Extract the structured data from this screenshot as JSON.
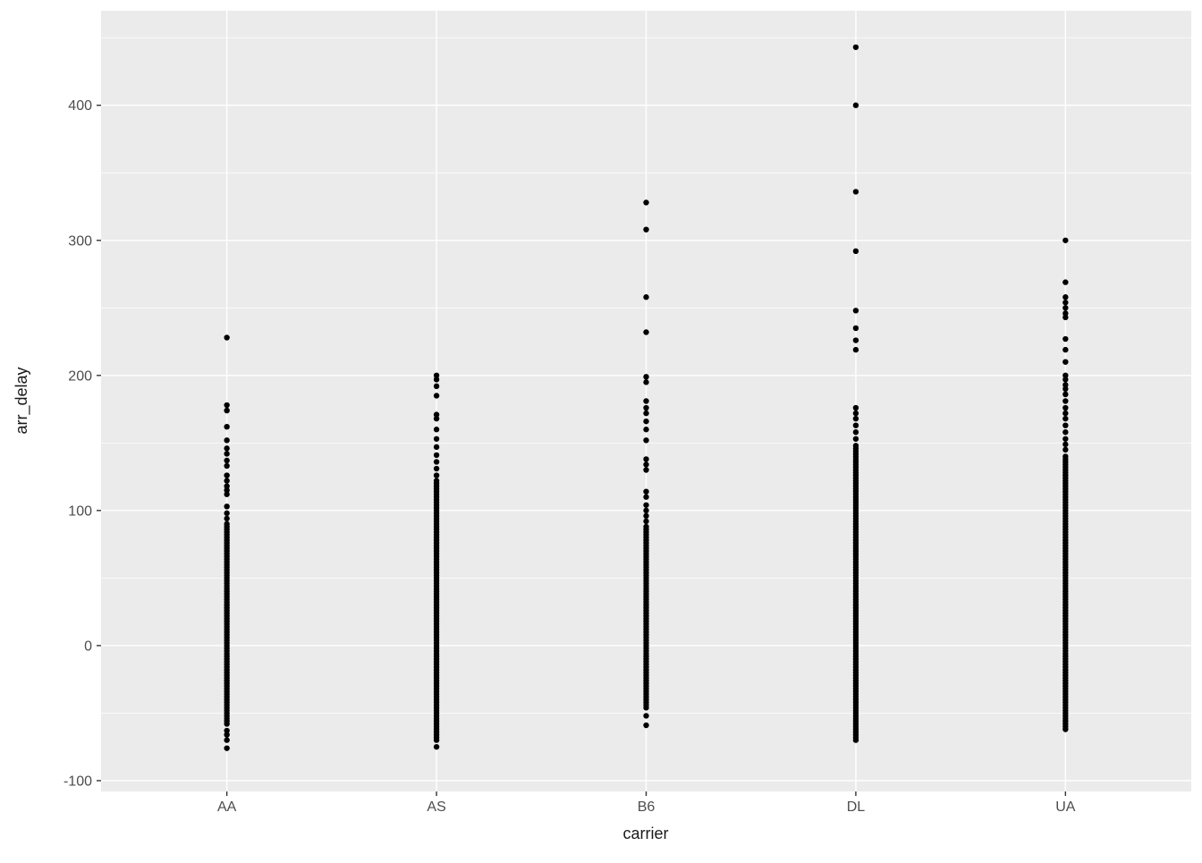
{
  "chart_data": {
    "type": "scatter",
    "title": "",
    "xlabel": "carrier",
    "ylabel": "arr_delay",
    "categories": [
      "AA",
      "AS",
      "B6",
      "DL",
      "UA"
    ],
    "y_axis": {
      "min": -108,
      "max": 470,
      "major_ticks": [
        -100,
        0,
        100,
        200,
        300,
        400
      ],
      "minor_ticks": [
        -50,
        50,
        150,
        250,
        350,
        450
      ]
    },
    "style": {
      "panel_bg": "#EBEBEB",
      "grid_color": "#FFFFFF",
      "point_color": "#000000",
      "tick_color": "#333333"
    },
    "series": [
      {
        "name": "AA",
        "dense_range": [
          -58,
          91
        ],
        "upper_points": [
          94,
          98,
          103,
          112,
          115,
          118,
          122,
          126,
          133,
          137,
          142,
          146,
          152,
          162,
          174,
          178,
          228
        ],
        "lower_points": [
          -63,
          -66,
          -70,
          -76
        ]
      },
      {
        "name": "AS",
        "dense_range": [
          -70,
          122
        ],
        "upper_points": [
          126,
          131,
          136,
          141,
          147,
          153,
          160,
          168,
          171,
          185,
          192,
          197,
          200
        ],
        "lower_points": [
          -75
        ]
      },
      {
        "name": "B6",
        "dense_range": [
          -46,
          88
        ],
        "upper_points": [
          92,
          96,
          100,
          104,
          110,
          114,
          130,
          134,
          138,
          152,
          160,
          166,
          172,
          176,
          181,
          195,
          199,
          232,
          258,
          308,
          328
        ],
        "lower_points": [
          -52,
          -59
        ]
      },
      {
        "name": "DL",
        "dense_range": [
          -70,
          148
        ],
        "upper_points": [
          153,
          158,
          163,
          168,
          172,
          176,
          219,
          226,
          235,
          248,
          292,
          336,
          400,
          443
        ],
        "lower_points": []
      },
      {
        "name": "UA",
        "dense_range": [
          -62,
          140
        ],
        "upper_points": [
          145,
          149,
          153,
          158,
          163,
          168,
          172,
          176,
          181,
          186,
          190,
          193,
          197,
          200,
          210,
          219,
          227,
          243,
          246,
          250,
          254,
          258,
          269,
          300
        ],
        "lower_points": []
      }
    ]
  }
}
